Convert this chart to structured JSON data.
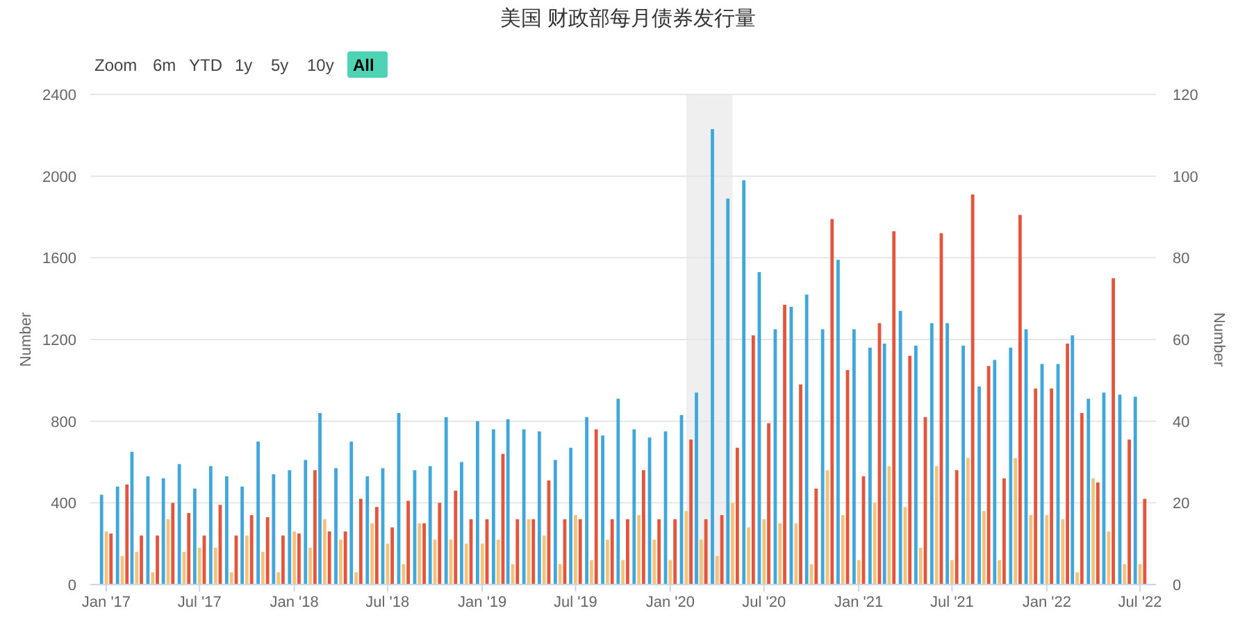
{
  "chart_data": {
    "type": "bar",
    "title": "美国 财政部每月债券发行量",
    "ylabel": "Number",
    "y2label": "Number",
    "annotations": [
      "Zoom",
      "6m",
      "YTD",
      "1y",
      "5y",
      "10y",
      "All"
    ],
    "x": [
      "2017-01",
      "2017-02",
      "2017-03",
      "2017-04",
      "2017-05",
      "2017-06",
      "2017-07",
      "2017-08",
      "2017-09",
      "2017-10",
      "2017-11",
      "2017-12",
      "2018-01",
      "2018-02",
      "2018-03",
      "2018-04",
      "2018-05",
      "2018-06",
      "2018-07",
      "2018-08",
      "2018-09",
      "2018-10",
      "2018-11",
      "2018-12",
      "2019-01",
      "2019-02",
      "2019-03",
      "2019-04",
      "2019-05",
      "2019-06",
      "2019-07",
      "2019-08",
      "2019-09",
      "2019-10",
      "2019-11",
      "2019-12",
      "2020-01",
      "2020-02",
      "2020-03",
      "2020-04",
      "2020-05",
      "2020-06",
      "2020-07",
      "2020-08",
      "2020-09",
      "2020-10",
      "2020-11",
      "2020-12",
      "2021-01",
      "2021-02",
      "2021-03",
      "2021-04",
      "2021-05",
      "2021-06",
      "2021-07",
      "2021-08",
      "2021-09",
      "2021-10",
      "2021-11",
      "2021-12",
      "2022-01",
      "2022-02",
      "2022-03",
      "2022-04",
      "2022-05",
      "2022-06",
      "2022-07"
    ],
    "series": [
      {
        "color": "#3fa7dc",
        "values": [
          440,
          480,
          650,
          530,
          520,
          590,
          470,
          580,
          530,
          480,
          700,
          540,
          560,
          610,
          840,
          570,
          700,
          530,
          570,
          840,
          560,
          580,
          820,
          600,
          800,
          760,
          810,
          760,
          750,
          610,
          670,
          820,
          730,
          910,
          760,
          720,
          750,
          830,
          940,
          2230,
          1890,
          1980,
          1530,
          1250,
          1360,
          1420,
          1250,
          1590,
          1250,
          1160,
          1180,
          1340,
          1170,
          1280,
          1280,
          1170,
          970,
          1100,
          1160,
          1250,
          1080,
          1080,
          1220,
          910,
          940,
          930,
          920
        ]
      },
      {
        "color": "#f5c27a",
        "axis": "y2",
        "values": [
          13,
          7,
          8,
          3,
          16,
          8,
          9,
          9,
          3,
          12,
          8,
          3,
          13,
          9,
          16,
          11,
          3,
          15,
          10,
          5,
          15,
          11,
          11,
          10,
          10,
          11,
          5,
          16,
          12,
          5,
          17,
          6,
          11,
          6,
          17,
          11,
          6,
          18,
          11,
          7,
          20,
          14,
          16,
          15,
          15,
          5,
          28,
          17,
          6,
          20,
          29,
          19,
          9,
          29,
          6,
          31,
          18,
          6,
          31,
          17,
          17,
          16,
          3,
          26,
          13,
          5,
          5
        ]
      },
      {
        "color": "#e5553b",
        "values": [
          250,
          490,
          240,
          240,
          400,
          350,
          240,
          390,
          240,
          340,
          330,
          240,
          250,
          560,
          260,
          260,
          420,
          380,
          280,
          410,
          300,
          400,
          460,
          320,
          320,
          640,
          320,
          320,
          510,
          320,
          320,
          760,
          320,
          320,
          560,
          320,
          320,
          710,
          320,
          340,
          670,
          1220,
          790,
          1370,
          980,
          470,
          1790,
          1050,
          530,
          1280,
          1730,
          1120,
          820,
          1720,
          560,
          1910,
          1070,
          520,
          1810,
          960,
          960,
          1180,
          840,
          500,
          1500,
          710,
          420
        ]
      }
    ],
    "bands": [
      {
        "axis": "x",
        "from": "2020-02",
        "to": "2020-05",
        "color": "#efefef"
      }
    ],
    "xlim": [
      "2016-12",
      "2022-08"
    ],
    "xticks": [
      {
        "value": "2017-01",
        "label": "Jan '17"
      },
      {
        "value": "2017-07",
        "label": "Jul '17"
      },
      {
        "value": "2018-01",
        "label": "Jan '18"
      },
      {
        "value": "2018-07",
        "label": "Jul '18"
      },
      {
        "value": "2019-01",
        "label": "Jan '19"
      },
      {
        "value": "2019-07",
        "label": "Jul '19"
      },
      {
        "value": "2020-01",
        "label": "Jan '20"
      },
      {
        "value": "2020-07",
        "label": "Jul '20"
      },
      {
        "value": "2021-01",
        "label": "Jan '21"
      },
      {
        "value": "2021-07",
        "label": "Jul '21"
      },
      {
        "value": "2022-01",
        "label": "Jan '22"
      },
      {
        "value": "2022-07",
        "label": "Jul '22"
      }
    ],
    "ylim": [
      0,
      2400
    ],
    "yticks": [
      0,
      400,
      800,
      1200,
      1600,
      2000,
      2400
    ],
    "y2lim": [
      0,
      120
    ],
    "y2ticks": [
      0,
      20,
      40,
      60,
      80,
      100,
      120
    ],
    "grid": "y"
  }
}
